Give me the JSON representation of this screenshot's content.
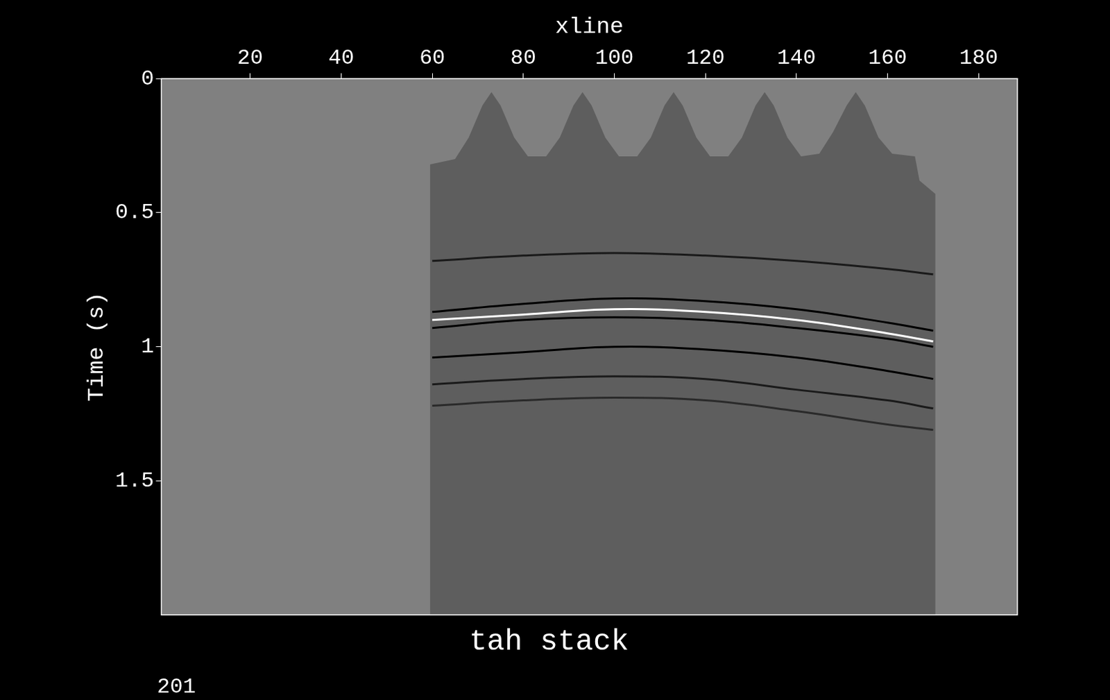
{
  "chart_data": {
    "type": "seismic",
    "title": "tah stack",
    "x_label": "xline",
    "y_label": "Time (s)",
    "annotations": [
      "201"
    ],
    "xlim": [
      0.5,
      188.5
    ],
    "xticks": [
      20,
      40,
      60,
      80,
      100,
      120,
      140,
      160,
      180
    ],
    "ylim": [
      0,
      2
    ],
    "yticks": [
      0,
      0.5,
      1,
      1.5
    ],
    "grid": false,
    "coverage": {
      "color": "#5e5e5e",
      "x": [
        59.5,
        65,
        68,
        71,
        73,
        75,
        78,
        81,
        85,
        88,
        91,
        93,
        95,
        98,
        101,
        105,
        108,
        111,
        113,
        115,
        118,
        121,
        125,
        128,
        131,
        133,
        135,
        138,
        141,
        145,
        148,
        151,
        153,
        155,
        158,
        161,
        166,
        167,
        170.5
      ],
      "values": [
        0.32,
        0.3,
        0.22,
        0.1,
        0.05,
        0.1,
        0.22,
        0.29,
        0.29,
        0.22,
        0.1,
        0.05,
        0.1,
        0.22,
        0.29,
        0.29,
        0.22,
        0.1,
        0.05,
        0.1,
        0.22,
        0.29,
        0.29,
        0.22,
        0.1,
        0.05,
        0.1,
        0.22,
        0.29,
        0.28,
        0.2,
        0.1,
        0.05,
        0.1,
        0.22,
        0.28,
        0.29,
        0.38,
        0.43
      ]
    },
    "horizons": [
      {
        "color": "#1a1a1a",
        "x": [
          60,
          80,
          100,
          120,
          140,
          160,
          170
        ],
        "values": [
          0.68,
          0.66,
          0.65,
          0.66,
          0.68,
          0.71,
          0.73
        ]
      },
      {
        "color": "#000000",
        "x": [
          60,
          80,
          100,
          120,
          140,
          160,
          170
        ],
        "values": [
          0.87,
          0.84,
          0.82,
          0.83,
          0.86,
          0.91,
          0.94
        ]
      },
      {
        "color": "#ffffff",
        "x": [
          60,
          80,
          100,
          120,
          140,
          160,
          170
        ],
        "values": [
          0.9,
          0.88,
          0.86,
          0.87,
          0.9,
          0.95,
          0.98
        ]
      },
      {
        "color": "#000000",
        "x": [
          60,
          80,
          100,
          120,
          140,
          160,
          170
        ],
        "values": [
          0.93,
          0.9,
          0.89,
          0.9,
          0.93,
          0.97,
          1.0
        ]
      },
      {
        "color": "#000000",
        "x": [
          60,
          80,
          100,
          120,
          140,
          160,
          170
        ],
        "values": [
          1.04,
          1.02,
          1.0,
          1.01,
          1.04,
          1.09,
          1.12
        ]
      },
      {
        "color": "#1a1a1a",
        "x": [
          60,
          80,
          100,
          120,
          140,
          160,
          170
        ],
        "values": [
          1.14,
          1.12,
          1.11,
          1.12,
          1.16,
          1.2,
          1.23
        ]
      },
      {
        "color": "#2a2a2a",
        "x": [
          60,
          80,
          100,
          120,
          140,
          160,
          170
        ],
        "values": [
          1.22,
          1.2,
          1.19,
          1.2,
          1.24,
          1.29,
          1.31
        ]
      }
    ]
  }
}
